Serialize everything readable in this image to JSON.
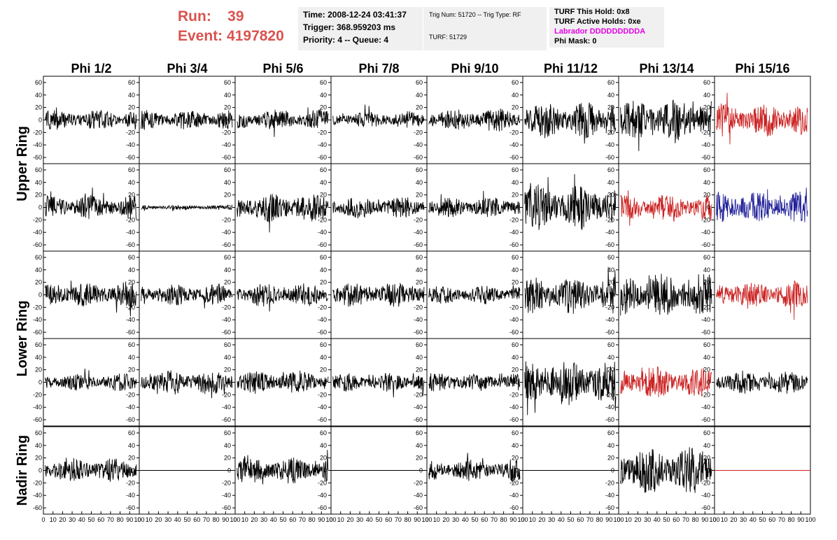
{
  "run": {
    "label": "Run:",
    "value": "39"
  },
  "event": {
    "label": "Event:",
    "value": "4197820"
  },
  "time_box": {
    "time": "Time: 2008-12-24 03:41:37",
    "trigger": "Trigger: 368.959203 ms",
    "priority": "Priority: 4 -- Queue: 4"
  },
  "trig_box": {
    "trig": "Trig Num: 51720 -- Trig Type: RF",
    "turf": "TURF: 51729"
  },
  "turf_box": {
    "this_hold": "TURF This Hold: 0x8",
    "active_holds": "TURF Active Holds: 0xe",
    "labrador": "Labrador DDDDDDDDDA",
    "phi_mask": "Phi Mask: 0"
  },
  "chart_data": {
    "type": "line",
    "columns": [
      "Phi 1/2",
      "Phi 3/4",
      "Phi 5/6",
      "Phi 7/8",
      "Phi 9/10",
      "Phi 11/12",
      "Phi 13/14",
      "Phi 15/16"
    ],
    "ring_labels": [
      {
        "label": "Upper Ring",
        "rows": [
          0,
          1
        ]
      },
      {
        "label": "Lower Ring",
        "rows": [
          2,
          3
        ]
      },
      {
        "label": "Nadir Ring",
        "rows": [
          4
        ]
      }
    ],
    "ylim": [
      -70,
      70
    ],
    "yticks": [
      -60,
      -40,
      -20,
      0,
      20,
      40,
      60
    ],
    "xlim": [
      0,
      100
    ],
    "xticks": [
      0,
      10,
      20,
      30,
      40,
      50,
      60,
      70,
      80,
      90,
      100
    ],
    "color_map": {
      "k": "#000000",
      "r": "#cc2222",
      "b": "#222299"
    },
    "panels": [
      [
        {
          "c": "k",
          "a": 17
        },
        {
          "c": "k",
          "a": 16
        },
        {
          "c": "k",
          "a": 17
        },
        {
          "c": "k",
          "a": 14
        },
        {
          "c": "k",
          "a": 19
        },
        {
          "c": "k",
          "a": 30
        },
        {
          "c": "k",
          "a": 34
        },
        {
          "c": "r",
          "a": 28
        }
      ],
      [
        {
          "c": "k",
          "a": 20
        },
        {
          "c": "k",
          "a": 4
        },
        {
          "c": "k",
          "a": 24
        },
        {
          "c": "k",
          "a": 18
        },
        {
          "c": "k",
          "a": 17
        },
        {
          "c": "k",
          "a": 37
        },
        {
          "c": "r",
          "a": 22
        },
        {
          "c": "b",
          "a": 26
        }
      ],
      [
        {
          "c": "k",
          "a": 21
        },
        {
          "c": "k",
          "a": 18
        },
        {
          "c": "k",
          "a": 19
        },
        {
          "c": "k",
          "a": 20
        },
        {
          "c": "k",
          "a": 15
        },
        {
          "c": "k",
          "a": 31
        },
        {
          "c": "k",
          "a": 36
        },
        {
          "c": "r",
          "a": 23
        }
      ],
      [
        {
          "c": "k",
          "a": 15
        },
        {
          "c": "k",
          "a": 20
        },
        {
          "c": "k",
          "a": 19
        },
        {
          "c": "k",
          "a": 15
        },
        {
          "c": "k",
          "a": 15
        },
        {
          "c": "k",
          "a": 38
        },
        {
          "c": "r",
          "a": 26
        },
        {
          "c": "k",
          "a": 19
        }
      ],
      [
        {
          "c": "k",
          "a": 20
        },
        {
          "c": "k",
          "a": 0
        },
        {
          "c": "k",
          "a": 22
        },
        {
          "c": "k",
          "a": 0
        },
        {
          "c": "k",
          "a": 18
        },
        {
          "c": "k",
          "a": 0
        },
        {
          "c": "k",
          "a": 38
        },
        {
          "c": "r",
          "a": 0
        }
      ]
    ]
  }
}
